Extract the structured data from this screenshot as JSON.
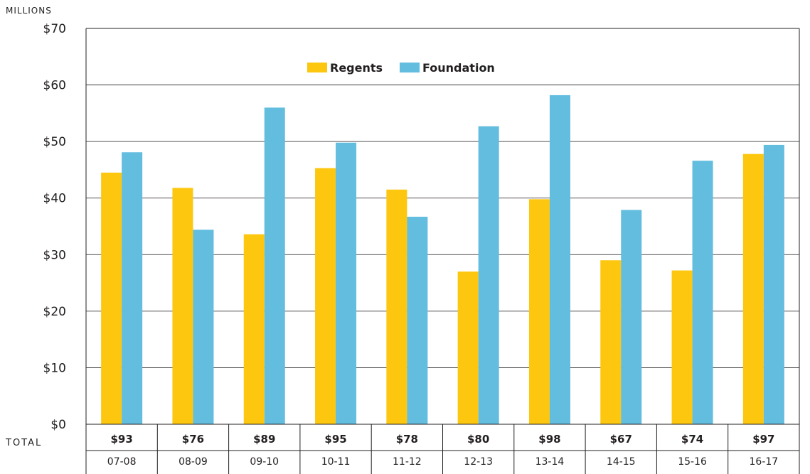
{
  "chart_data": {
    "type": "bar",
    "unit_label": "MILLIONS",
    "total_label": "TOTAL",
    "categories": [
      "07-08",
      "08-09",
      "09-10",
      "10-11",
      "11-12",
      "12-13",
      "13-14",
      "14-15",
      "15-16",
      "16-17"
    ],
    "totals": [
      "$93",
      "$76",
      "$89",
      "$95",
      "$78",
      "$80",
      "$98",
      "$67",
      "$74",
      "$97"
    ],
    "series": [
      {
        "name": "Regents",
        "color": "#fdc70f",
        "values": [
          44.5,
          41.8,
          33.6,
          45.3,
          41.5,
          27.0,
          39.8,
          29.0,
          27.2,
          47.8
        ]
      },
      {
        "name": "Foundation",
        "color": "#62bddf",
        "values": [
          48.1,
          34.4,
          56.0,
          49.8,
          36.7,
          52.7,
          58.2,
          37.9,
          46.6,
          49.4
        ]
      }
    ],
    "ylim": [
      0,
      70
    ],
    "yticks": [
      0,
      10,
      20,
      30,
      40,
      50,
      60,
      70
    ],
    "ytick_labels": [
      "$0",
      "$10",
      "$20",
      "$30",
      "$40",
      "$50",
      "$60",
      "$70"
    ],
    "legend_position": "top-center",
    "grid": true
  }
}
